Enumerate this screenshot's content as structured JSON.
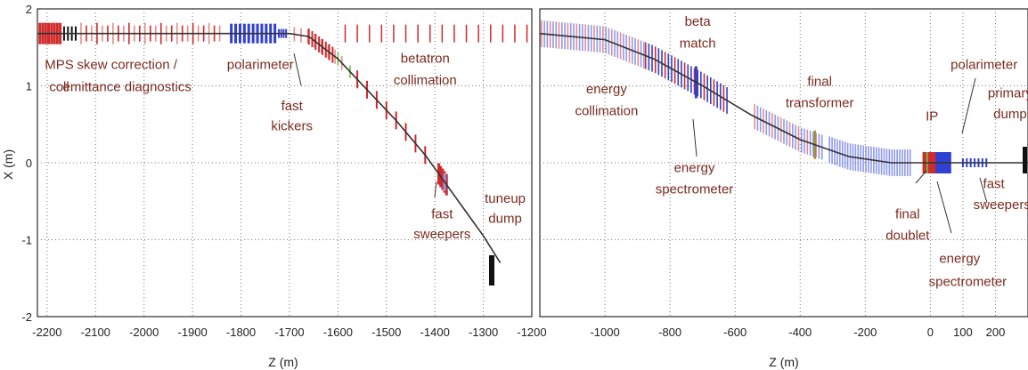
{
  "chart_data": [
    {
      "type": "line",
      "title": "",
      "xlabel": "Z (m)",
      "ylabel": "X (m)",
      "xlim": [
        -2220,
        -1200
      ],
      "ylim": [
        -2,
        2
      ],
      "x_ticks": [
        "-2200",
        "-2100",
        "-2000",
        "-1900",
        "-1800",
        "-1700",
        "-1600",
        "-1500",
        "-1400",
        "-1300",
        "-1200"
      ],
      "y_ticks": [
        "2",
        "1",
        "0",
        "-1",
        "-2"
      ],
      "grid": true,
      "beamline": {
        "z": [
          -2220,
          -1700,
          -1660,
          -1600,
          -1540,
          -1480,
          -1420,
          -1380,
          -1340,
          -1300,
          -1265
        ],
        "x": [
          1.68,
          1.68,
          1.64,
          1.35,
          0.95,
          0.55,
          0.1,
          -0.25,
          -0.6,
          -0.95,
          -1.3
        ]
      },
      "labels": [
        {
          "id": "mps-label",
          "text": "MPS",
          "z": -2175,
          "x": 1.22
        },
        {
          "id": "coll-label",
          "text": "coll",
          "z": -2175,
          "x": 0.93
        },
        {
          "id": "skew-label",
          "text": "skew correction /",
          "z": -2035,
          "x": 1.22
        },
        {
          "id": "emittance-label",
          "text": "emittance diagnostics",
          "z": -2035,
          "x": 0.93
        },
        {
          "id": "polarimeter-label",
          "text": "polarimeter",
          "z": -1760,
          "x": 1.22
        },
        {
          "id": "fast-kickers-label-1",
          "text": "fast",
          "z": -1695,
          "x": 0.68
        },
        {
          "id": "fast-kickers-label-2",
          "text": "kickers",
          "z": -1695,
          "x": 0.42
        },
        {
          "id": "betatron-label",
          "text": "betatron",
          "z": -1420,
          "x": 1.3
        },
        {
          "id": "collimation-label",
          "text": "collimation",
          "z": -1420,
          "x": 1.02
        },
        {
          "id": "fast-sweepers-label-1",
          "text": "fast",
          "z": -1385,
          "x": -0.72
        },
        {
          "id": "fast-sweepers-label-2",
          "text": "sweepers",
          "z": -1385,
          "x": -0.98
        },
        {
          "id": "tuneup-label-1",
          "text": "tuneup",
          "z": -1255,
          "x": -0.52
        },
        {
          "id": "tuneup-label-2",
          "text": "dump",
          "z": -1255,
          "x": -0.78
        }
      ]
    },
    {
      "type": "line",
      "title": "",
      "xlabel": "Z (m)",
      "ylabel": "",
      "xlim": [
        -1200,
        300
      ],
      "ylim": [
        -2,
        2
      ],
      "x_ticks": [
        "-1000",
        "-800",
        "-600",
        "-400",
        "-200",
        "0",
        "100",
        "200"
      ],
      "y_ticks": [],
      "grid": true,
      "beamline": {
        "z": [
          -1200,
          -1000,
          -850,
          -700,
          -550,
          -400,
          -250,
          -120,
          0,
          300
        ],
        "x": [
          1.68,
          1.6,
          1.35,
          1.0,
          0.62,
          0.3,
          0.08,
          0.0,
          0.0,
          0.0
        ]
      },
      "labels": [
        {
          "id": "beta-label",
          "text": "beta",
          "z": -715,
          "x": 1.78
        },
        {
          "id": "match-label",
          "text": "match",
          "z": -715,
          "x": 1.5
        },
        {
          "id": "energy-coll-label-1",
          "text": "energy",
          "z": -995,
          "x": 0.9
        },
        {
          "id": "energy-coll-label-2",
          "text": "collimation",
          "z": -995,
          "x": 0.62
        },
        {
          "id": "final-transformer-label-1",
          "text": "final",
          "z": -340,
          "x": 1.0
        },
        {
          "id": "final-transformer-label-2",
          "text": "transformer",
          "z": -340,
          "x": 0.72
        },
        {
          "id": "energy-spec-label-1",
          "text": "energy",
          "z": -725,
          "x": -0.12
        },
        {
          "id": "energy-spec-label-2",
          "text": "spectrometer",
          "z": -725,
          "x": -0.4
        },
        {
          "id": "ip-label",
          "text": "IP",
          "z": 5,
          "x": 0.55
        },
        {
          "id": "polarimeter-2-label",
          "text": "polarimeter",
          "z": 165,
          "x": 1.22
        },
        {
          "id": "primary-label",
          "text": "primary",
          "z": 245,
          "x": 0.85
        },
        {
          "id": "dump-label",
          "text": "dump",
          "z": 245,
          "x": 0.58
        },
        {
          "id": "fast-2-label",
          "text": "fast",
          "z": 195,
          "x": -0.33
        },
        {
          "id": "sweepers-2-label",
          "text": "sweepers",
          "z": 220,
          "x": -0.6
        },
        {
          "id": "final-doublet-label-1",
          "text": "final",
          "z": -70,
          "x": -0.72
        },
        {
          "id": "final-doublet-label-2",
          "text": "doublet",
          "z": -70,
          "x": -1.0
        },
        {
          "id": "energy-spec-2-label-1",
          "text": "energy",
          "z": 90,
          "x": -1.3
        },
        {
          "id": "energy-spec-2-label-2",
          "text": "spectrometer",
          "z": 115,
          "x": -1.6
        }
      ]
    }
  ],
  "colors": {
    "dipole": "#3040d0",
    "quad": "#d02a2a",
    "light_red": "#e88a8a",
    "light_blue": "#8f9ae8",
    "green": "#6abf4a",
    "beamline": "#333333",
    "dump": "#111111"
  }
}
